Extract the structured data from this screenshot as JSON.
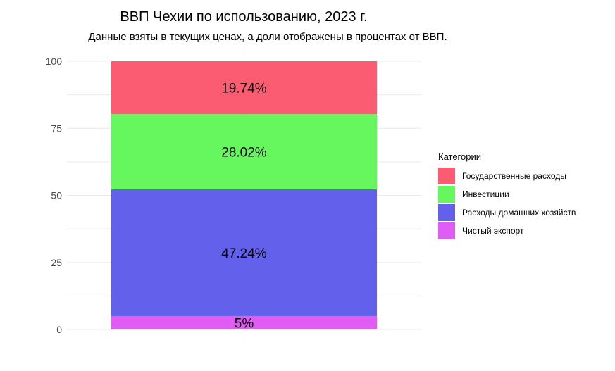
{
  "chart_data": {
    "type": "bar",
    "stacked": true,
    "title": "ВВП Чехии по использованию, 2023 г.",
    "subtitle": "Данные взяты в текущих ценах, а доли отображены в процентах от ВВП.",
    "xlabel": "",
    "ylabel": "",
    "ylim": [
      0,
      100
    ],
    "yticks": [
      "0",
      "25",
      "50",
      "75",
      "100"
    ],
    "grid": true,
    "legend_title": "Категории",
    "legend_position": "right",
    "series": [
      {
        "name": "Чистый экспорт",
        "value": 5.0,
        "label": "5%",
        "color": "#e05cf5"
      },
      {
        "name": "Расходы домашних хозяйств",
        "value": 47.24,
        "label": "47.24%",
        "color": "#6360eb"
      },
      {
        "name": "Инвестиции",
        "value": 28.02,
        "label": "28.02%",
        "color": "#66f75f"
      },
      {
        "name": "Государственные расходы",
        "value": 19.74,
        "label": "19.74%",
        "color": "#fb5c72"
      }
    ],
    "legend_order": [
      "Государственные расходы",
      "Инвестиции",
      "Расходы домашних хозяйств",
      "Чистый экспорт"
    ]
  }
}
